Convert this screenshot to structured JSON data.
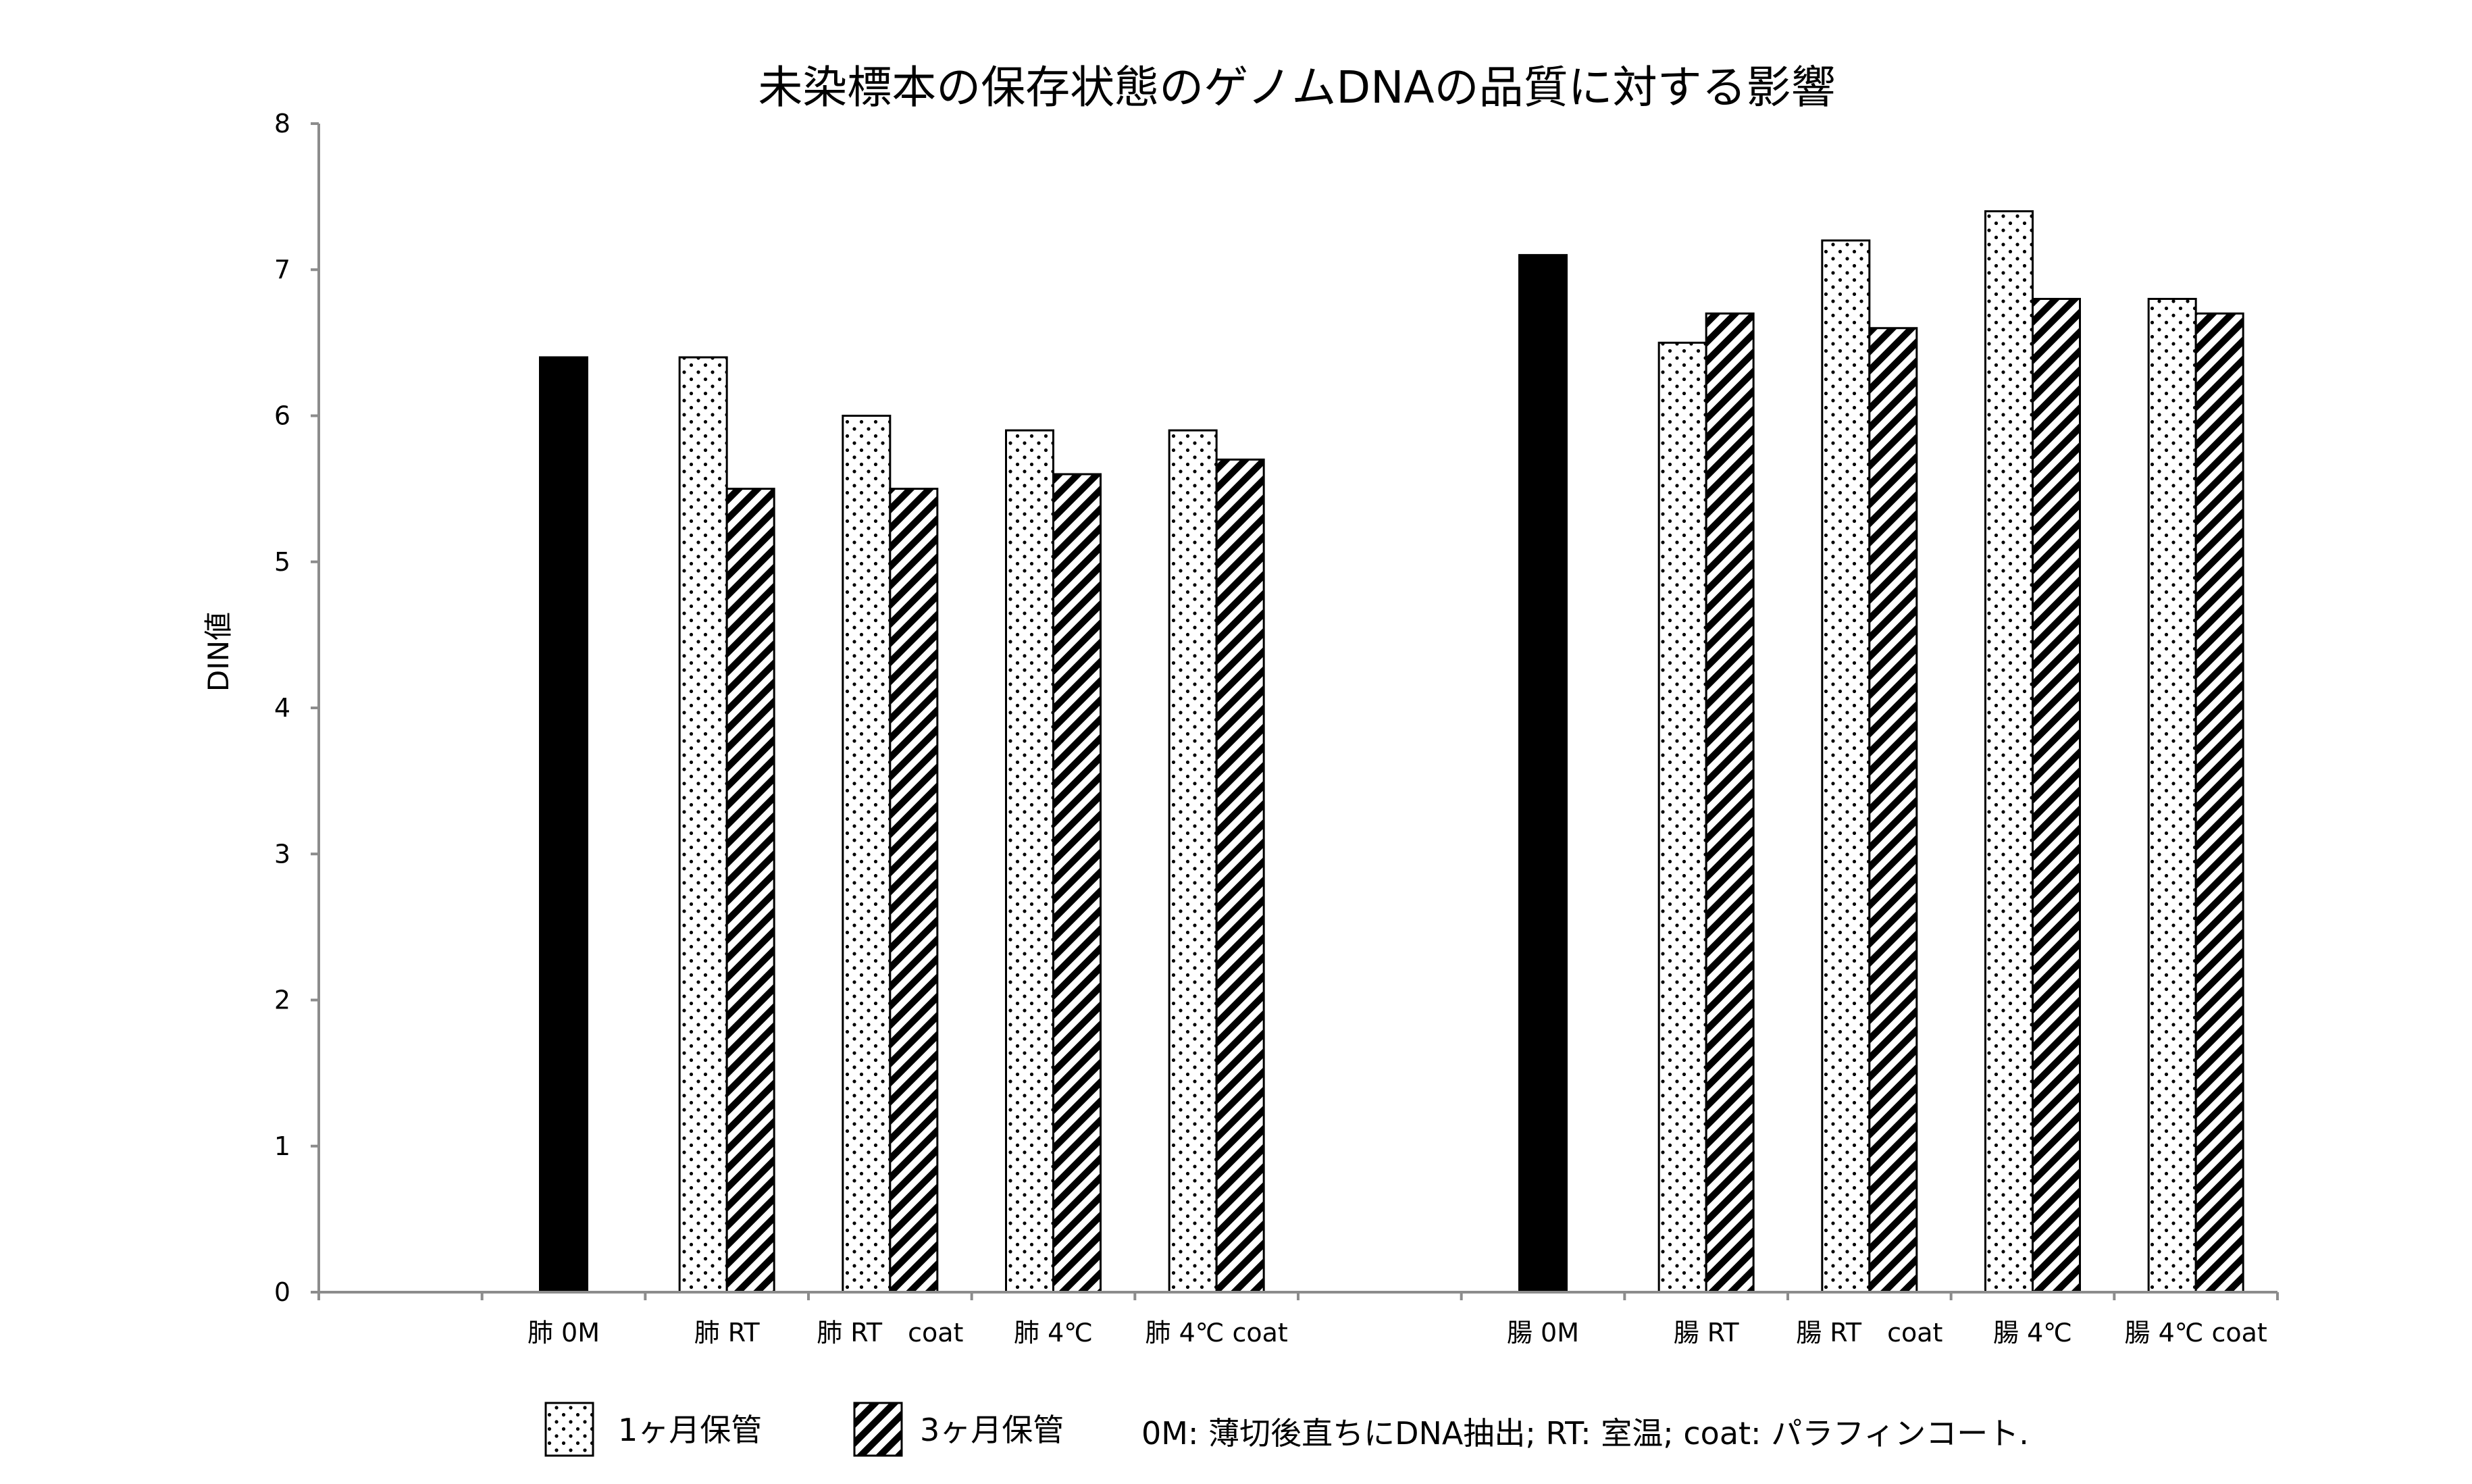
{
  "chart_data": {
    "type": "bar",
    "title": "未染標本の保存状態のゲノムDNAの品質に対する影響",
    "xlabel": "",
    "ylabel": "DIN値",
    "ylim": [
      0,
      8
    ],
    "yticks": [
      0,
      1,
      2,
      3,
      4,
      5,
      6,
      7,
      8
    ],
    "grid": false,
    "legend_position": "bottom",
    "categories": [
      "",
      "肺 0M",
      "肺 RT",
      "肺 RT　coat",
      "肺 4℃",
      "肺 4℃ coat",
      "",
      "腸 0M",
      "腸 RT",
      "腸 RT　coat",
      "腸 4℃",
      "腸 4℃ coat"
    ],
    "series": [
      {
        "name": "",
        "pattern": "solid",
        "color": "#000000",
        "values": [
          null,
          6.4,
          null,
          null,
          null,
          null,
          null,
          7.1,
          null,
          null,
          null,
          null
        ]
      },
      {
        "name": "1ヶ月保管",
        "pattern": "dots",
        "color": "#ffffff",
        "values": [
          null,
          null,
          6.4,
          6.0,
          5.9,
          5.9,
          null,
          null,
          6.5,
          7.2,
          7.4,
          6.8
        ]
      },
      {
        "name": "3ヶ月保管",
        "pattern": "hatch",
        "color": "#ffffff",
        "values": [
          null,
          null,
          5.5,
          5.5,
          5.6,
          5.7,
          null,
          null,
          6.7,
          6.6,
          6.8,
          6.7
        ]
      }
    ],
    "legend": [
      {
        "label": "1ヶ月保管",
        "pattern": "dots"
      },
      {
        "label": "3ヶ月保管",
        "pattern": "hatch"
      }
    ],
    "note": "0M: 薄切後直ちにDNA抽出; RT: 室温; coat: パラフィンコート."
  }
}
